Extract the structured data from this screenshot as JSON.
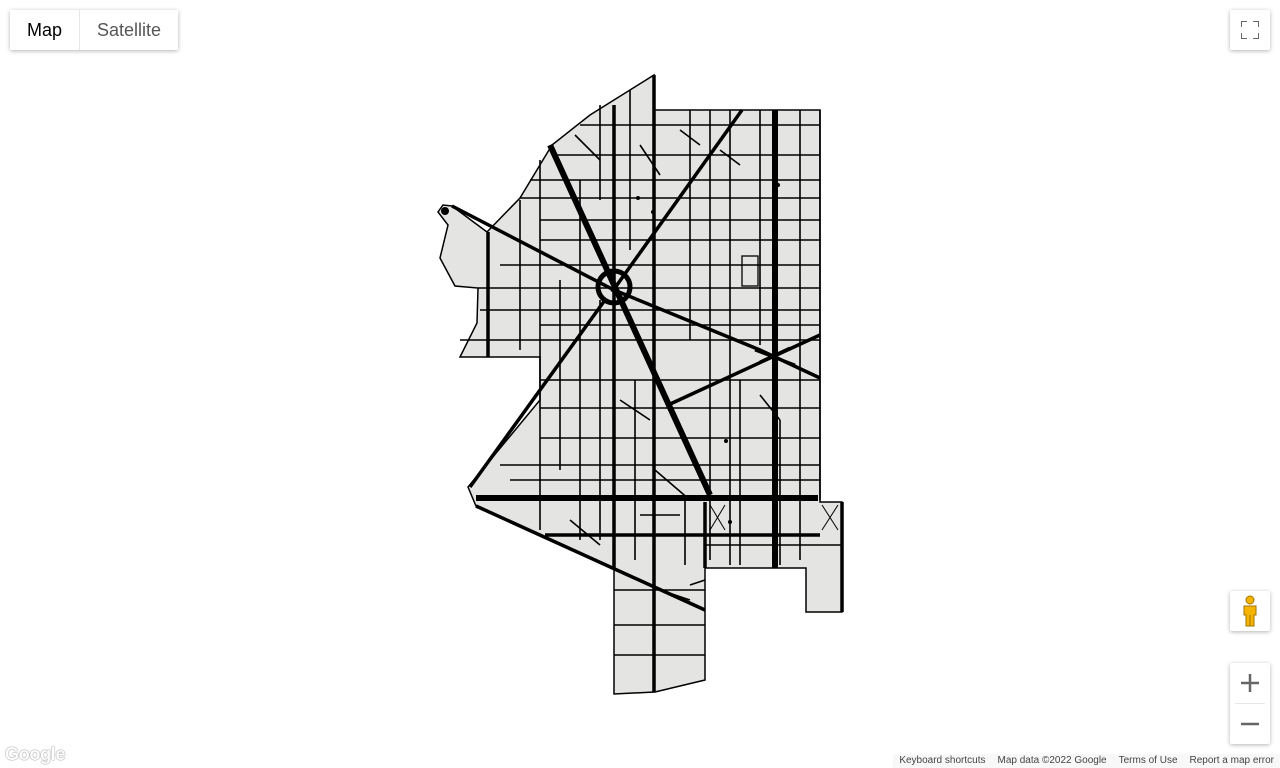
{
  "map_type": {
    "map_label": "Map",
    "satellite_label": "Satellite",
    "selected": "Map"
  },
  "controls": {
    "fullscreen_icon": "fullscreen-icon",
    "pegman_icon": "pegman-icon",
    "zoom_in_icon": "plus-icon",
    "zoom_out_icon": "minus-icon"
  },
  "logo": {
    "text": "Google"
  },
  "attribution": {
    "keyboard_shortcuts": "Keyboard shortcuts",
    "map_data": "Map data ©2022 Google",
    "terms": "Terms of Use",
    "report": "Report a map error"
  },
  "colors": {
    "region_fill": "#e4e4e2",
    "road": "#000000",
    "pegman": "#f5b400"
  }
}
